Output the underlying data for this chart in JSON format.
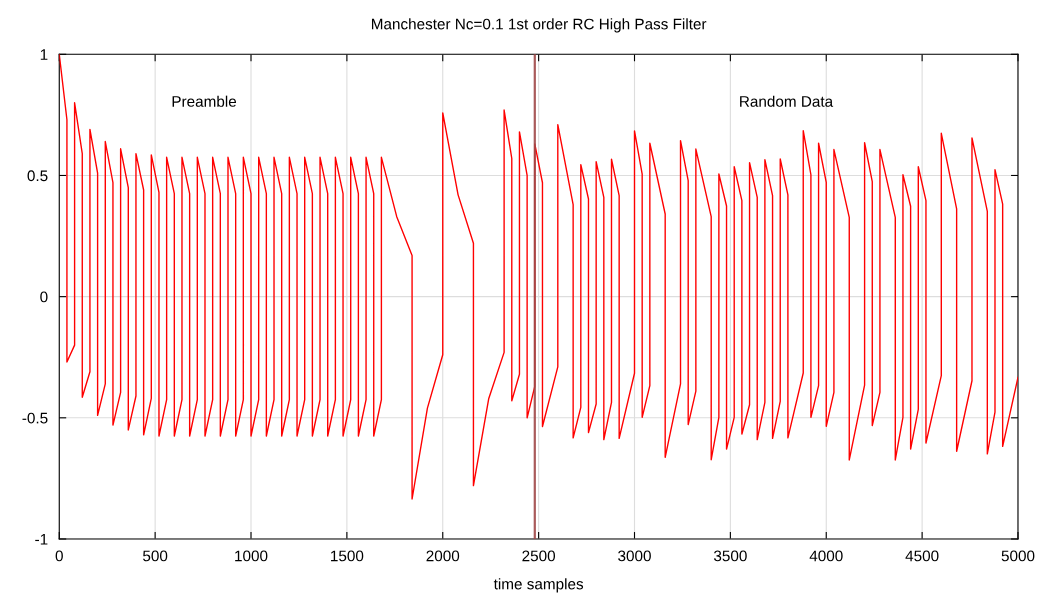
{
  "chart_data": {
    "type": "line",
    "title": "Manchester Nc=0.1 1st order RC High Pass Filter",
    "xlabel": "time samples",
    "xlim": [
      0,
      5000
    ],
    "xticks": [
      0,
      500,
      1000,
      1500,
      2000,
      2500,
      3000,
      3500,
      4000,
      4500,
      5000
    ],
    "ylim": [
      -1,
      1
    ],
    "yticks": [
      -1,
      -0.5,
      0,
      0.5,
      1
    ],
    "grid": true,
    "marker": "none",
    "line_style": "solid",
    "ref_lines": [
      {
        "axis": "x",
        "value": 2480,
        "color": "#a04848"
      }
    ],
    "annotations": [
      "Preamble",
      "Random Data"
    ],
    "series": [
      {
        "color": "#ff0000",
        "x": [
          0,
          40,
          40,
          80,
          80,
          120,
          120,
          160,
          160,
          200,
          200,
          240,
          240,
          280,
          280,
          320,
          320,
          360,
          360,
          400,
          400,
          440,
          440,
          480,
          480,
          520,
          520,
          560,
          560,
          600,
          600,
          640,
          640,
          680,
          680,
          720,
          720,
          760,
          760,
          800,
          800,
          840,
          840,
          880,
          880,
          920,
          920,
          960,
          960,
          1000,
          1000,
          1040,
          1040,
          1080,
          1080,
          1120,
          1120,
          1160,
          1160,
          1200,
          1200,
          1240,
          1240,
          1280,
          1280,
          1320,
          1320,
          1360,
          1360,
          1400,
          1400,
          1440,
          1440,
          1480,
          1480,
          1520,
          1520,
          1560,
          1560,
          1600,
          1600,
          1640,
          1640,
          1680,
          1680,
          1760,
          1840,
          1840,
          1920,
          2000,
          2000,
          2080,
          2160,
          2160,
          2240,
          2320,
          2320,
          2360,
          2360,
          2400,
          2400,
          2440,
          2440,
          2480,
          2480,
          2520,
          2520,
          2600,
          2600,
          2680,
          2680,
          2720,
          2720,
          2760,
          2760,
          2800,
          2800,
          2840,
          2840,
          2880,
          2880,
          2920,
          2920,
          3000,
          3000,
          3040,
          3040,
          3080,
          3080,
          3160,
          3160,
          3240,
          3240,
          3280,
          3280,
          3320,
          3320,
          3400,
          3400,
          3440,
          3440,
          3480,
          3480,
          3520,
          3520,
          3560,
          3560,
          3600,
          3600,
          3640,
          3640,
          3680,
          3680,
          3720,
          3720,
          3760,
          3760,
          3800,
          3800,
          3880,
          3880,
          3920,
          3920,
          3960,
          3960,
          4000,
          4000,
          4040,
          4040,
          4120,
          4120,
          4200,
          4200,
          4240,
          4240,
          4280,
          4280,
          4360,
          4360,
          4400,
          4400,
          4440,
          4440,
          4480,
          4480,
          4520,
          4520,
          4600,
          4600,
          4680,
          4680,
          4760,
          4760,
          4840,
          4840,
          4880,
          4880,
          4920,
          4920,
          5000
        ],
        "values": [
          1,
          0.73,
          -0.27,
          -0.2,
          0.8,
          0.59,
          -0.415,
          -0.31,
          0.69,
          0.51,
          -0.49,
          -0.36,
          0.64,
          0.47,
          -0.53,
          -0.395,
          0.61,
          0.45,
          -0.55,
          -0.41,
          0.59,
          0.44,
          -0.57,
          -0.42,
          0.585,
          0.43,
          -0.575,
          -0.425,
          0.575,
          0.425,
          -0.575,
          -0.425,
          0.575,
          0.425,
          -0.575,
          -0.425,
          0.575,
          0.425,
          -0.575,
          -0.425,
          0.575,
          0.425,
          -0.575,
          -0.425,
          0.575,
          0.425,
          -0.575,
          -0.425,
          0.575,
          0.425,
          -0.575,
          -0.425,
          0.575,
          0.425,
          -0.575,
          -0.425,
          0.575,
          0.425,
          -0.575,
          -0.425,
          0.575,
          0.425,
          -0.575,
          -0.425,
          0.575,
          0.425,
          -0.575,
          -0.425,
          0.575,
          0.425,
          -0.575,
          -0.425,
          0.575,
          0.425,
          -0.575,
          -0.425,
          0.575,
          0.425,
          -0.575,
          -0.425,
          0.575,
          0.425,
          -0.575,
          -0.425,
          0.575,
          0.33,
          0.17,
          -0.835,
          -0.46,
          -0.24,
          0.758,
          0.42,
          0.22,
          -0.78,
          -0.42,
          -0.23,
          0.77,
          0.57,
          -0.43,
          -0.32,
          0.68,
          0.5,
          -0.5,
          -0.37,
          0.63,
          0.47,
          -0.536,
          -0.29,
          0.71,
          0.38,
          -0.583,
          -0.457,
          0.545,
          0.403,
          -0.561,
          -0.443,
          0.557,
          0.41,
          -0.59,
          -0.436,
          0.567,
          0.417,
          -0.585,
          -0.316,
          0.684,
          0.506,
          -0.498,
          -0.367,
          0.633,
          0.341,
          -0.663,
          -0.36,
          0.644,
          0.479,
          -0.528,
          -0.39,
          0.609,
          0.33,
          -0.673,
          -0.498,
          0.506,
          0.374,
          -0.629,
          -0.498,
          0.536,
          0.396,
          -0.567,
          -0.446,
          0.553,
          0.41,
          -0.59,
          -0.436,
          0.565,
          0.417,
          -0.585,
          -0.432,
          0.568,
          0.42,
          -0.583,
          -0.315,
          0.685,
          0.503,
          -0.498,
          -0.367,
          0.633,
          0.472,
          -0.535,
          -0.395,
          0.607,
          0.327,
          -0.674,
          -0.365,
          0.635,
          0.475,
          -0.532,
          -0.395,
          0.607,
          0.327,
          -0.674,
          -0.498,
          0.503,
          0.373,
          -0.629,
          -0.465,
          0.536,
          0.396,
          -0.604,
          -0.326,
          0.674,
          0.362,
          -0.638,
          -0.347,
          0.655,
          0.352,
          -0.649,
          -0.477,
          0.524,
          0.382,
          -0.618,
          -0.333
        ]
      }
    ]
  }
}
